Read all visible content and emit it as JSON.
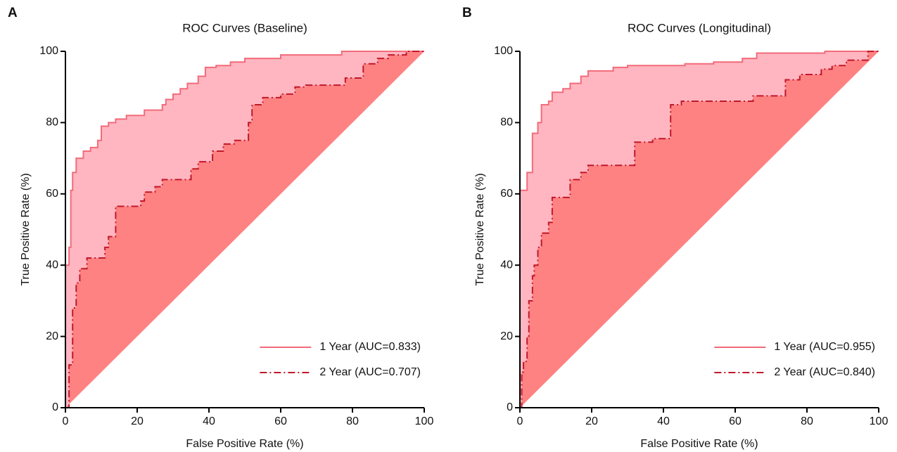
{
  "chart_data": [
    {
      "type": "line",
      "panel": "A",
      "title": "ROC Curves (Baseline)",
      "xlabel": "False Positive Rate (%)",
      "ylabel": "True Positive Rate (%)",
      "xlim": [
        0,
        100
      ],
      "ylim": [
        0,
        100
      ],
      "xticks": [
        0,
        20,
        40,
        60,
        80,
        100
      ],
      "yticks": [
        0,
        20,
        40,
        60,
        80,
        100
      ],
      "legend": "lower-right",
      "series": [
        {
          "name": "1 Year (AUC=0.833)",
          "color": "#f26b7a",
          "fill": "#ffb6c1",
          "dash": "solid",
          "x": [
            0,
            0,
            1,
            1,
            1.5,
            1.5,
            2,
            2,
            3,
            3,
            5,
            5,
            7,
            7,
            9,
            9,
            10,
            10,
            12,
            12,
            14,
            14,
            17,
            17,
            22,
            22,
            27,
            27,
            28,
            28,
            30,
            30,
            32,
            32,
            34,
            34,
            37,
            37,
            39,
            39,
            42,
            42,
            46,
            46,
            50,
            50,
            60,
            60,
            77,
            77,
            100
          ],
          "values": [
            0,
            40,
            40,
            45,
            45,
            61,
            61,
            66,
            66,
            70,
            70,
            72,
            72,
            73,
            73,
            75,
            75,
            79,
            79,
            80,
            80,
            81,
            81,
            82,
            82,
            83.5,
            83.5,
            85,
            85,
            86.5,
            86.5,
            88,
            88,
            89.5,
            89.5,
            91,
            91,
            93,
            93,
            95.5,
            95.5,
            96,
            96,
            97,
            97,
            98,
            98,
            99,
            99,
            100,
            100
          ]
        },
        {
          "name": "2 Year (AUC=0.707)",
          "color": "#c0182b",
          "fill": "#ff8282",
          "dash": "dashdot",
          "x": [
            0,
            1,
            1,
            2,
            2,
            3,
            3,
            4,
            4,
            6,
            6,
            11,
            11,
            12,
            12,
            14,
            14,
            21,
            21,
            22,
            22,
            25,
            25,
            27,
            27,
            35,
            35,
            37,
            37,
            41,
            41,
            44,
            44,
            47,
            47,
            51,
            51,
            52,
            52,
            55,
            55,
            60,
            60,
            64,
            64,
            67,
            67,
            78,
            78,
            83,
            83,
            87,
            87,
            90,
            90,
            95,
            95,
            100
          ],
          "values": [
            0,
            0,
            12,
            12,
            28,
            28,
            35,
            35,
            39,
            39,
            42,
            42,
            45,
            45,
            48,
            48,
            56.5,
            56.5,
            58,
            58,
            60.5,
            60.5,
            62,
            62,
            64,
            64,
            67,
            67,
            69,
            69,
            72,
            72,
            74,
            74,
            75,
            75,
            80,
            80,
            85,
            85,
            87,
            87,
            88,
            88,
            90,
            90,
            90.5,
            90.5,
            92.5,
            92.5,
            96.5,
            96.5,
            98,
            98,
            99,
            99,
            100,
            100
          ]
        }
      ]
    },
    {
      "type": "line",
      "panel": "B",
      "title": "ROC Curves (Longitudinal)",
      "xlabel": "False Positive Rate (%)",
      "ylabel": "True Positive Rate (%)",
      "xlim": [
        0,
        100
      ],
      "ylim": [
        0,
        100
      ],
      "xticks": [
        0,
        20,
        40,
        60,
        80,
        100
      ],
      "yticks": [
        0,
        20,
        40,
        60,
        80,
        100
      ],
      "legend": "lower-right",
      "series": [
        {
          "name": "1 Year (AUC=0.955)",
          "color": "#f26b7a",
          "fill": "#ffb6c1",
          "dash": "solid",
          "x": [
            0,
            0,
            2,
            2,
            3.5,
            3.5,
            5,
            5,
            6,
            6,
            8,
            8,
            9,
            9,
            12,
            12,
            14,
            14,
            17,
            17,
            19,
            19,
            26,
            26,
            30,
            30,
            46,
            46,
            54,
            54,
            62,
            62,
            66,
            66,
            85,
            85,
            100
          ],
          "values": [
            0,
            61,
            61,
            66,
            66,
            77,
            77,
            80,
            80,
            85,
            85,
            86,
            86,
            88.5,
            88.5,
            89.5,
            89.5,
            91,
            91,
            93,
            93,
            94.5,
            94.5,
            95.5,
            95.5,
            96,
            96,
            96.5,
            96.5,
            97,
            97,
            98,
            98,
            99.5,
            99.5,
            100,
            100
          ]
        },
        {
          "name": "2 Year (AUC=0.840)",
          "color": "#c0182b",
          "fill": "#ff8282",
          "dash": "dashdot",
          "x": [
            0,
            0.5,
            0.5,
            1,
            1,
            2,
            2,
            2.5,
            2.5,
            3.5,
            3.5,
            4,
            4,
            5,
            5,
            6,
            6,
            8,
            8,
            9,
            9,
            14,
            14,
            17,
            17,
            19,
            19,
            32,
            32,
            37,
            37,
            42,
            42,
            45,
            45,
            65,
            65,
            74,
            74,
            78,
            78,
            84,
            84,
            87,
            87,
            91,
            91,
            97,
            97,
            100
          ],
          "values": [
            0,
            0,
            10,
            10,
            13,
            13,
            20,
            20,
            30,
            30,
            37,
            37,
            40,
            40,
            45,
            45,
            49,
            49,
            52,
            52,
            59,
            59,
            64,
            64,
            66,
            66,
            68,
            68,
            74.5,
            74.5,
            75.5,
            75.5,
            85,
            85,
            86,
            86,
            87.5,
            87.5,
            92,
            92,
            93.5,
            93.5,
            95,
            95,
            96,
            96,
            97.5,
            97.5,
            100,
            100
          ]
        }
      ]
    }
  ]
}
